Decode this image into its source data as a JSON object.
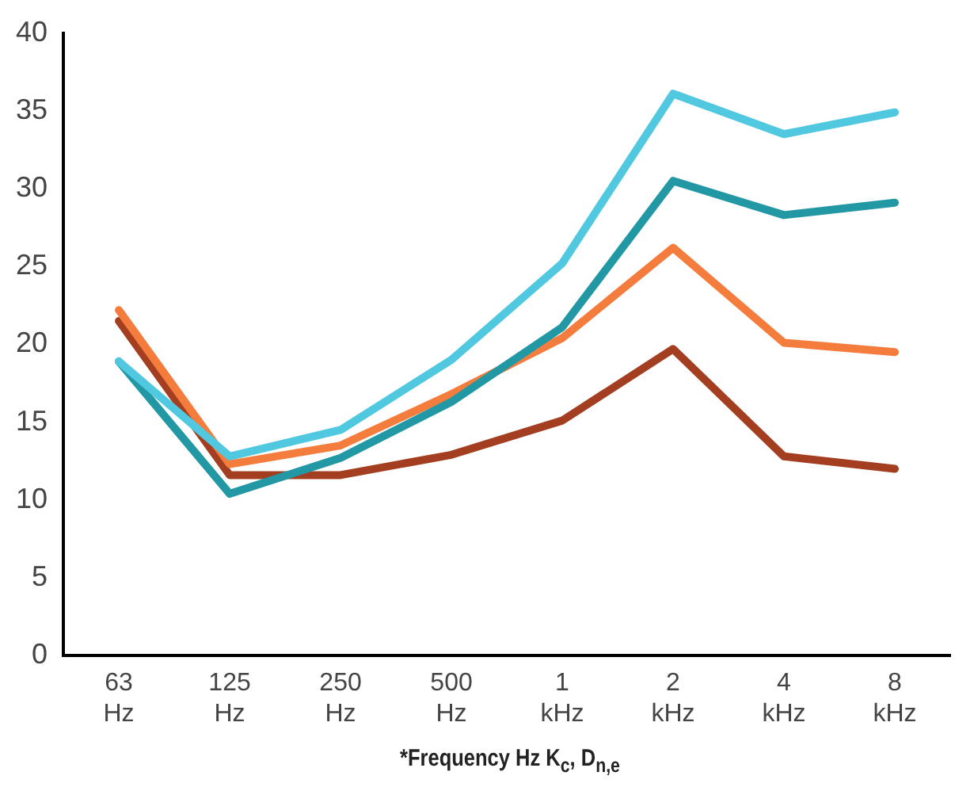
{
  "chart_data": {
    "type": "line",
    "xlabel": "*Frequency Hz K$_{c}$, D$_{n,e}$",
    "categories": [
      "63 Hz",
      "125 Hz",
      "250 Hz",
      "500 Hz",
      "1 kHz",
      "2 kHz",
      "4 kHz",
      "8 kHz"
    ],
    "series": [
      {
        "color": "#4fc8e0",
        "values": [
          18.9,
          12.8,
          14.5,
          19.0,
          25.2,
          36.1,
          33.5,
          34.9
        ]
      },
      {
        "color": "#2198a4",
        "values": [
          18.9,
          10.4,
          12.7,
          16.3,
          21.1,
          30.5,
          28.3,
          29.1
        ]
      },
      {
        "color": "#f47d3e",
        "values": [
          22.2,
          12.3,
          13.5,
          16.8,
          20.4,
          26.2,
          20.1,
          19.5
        ]
      },
      {
        "color": "#a33e20",
        "values": [
          21.5,
          11.6,
          11.6,
          12.9,
          15.1,
          19.7,
          12.8,
          12.0
        ]
      }
    ],
    "ylim": [
      0,
      40
    ],
    "yticks": [
      0,
      5,
      10,
      15,
      20,
      25,
      30,
      35,
      40
    ],
    "grid": false,
    "legend": false,
    "marker": "none",
    "line_style": "solid"
  }
}
